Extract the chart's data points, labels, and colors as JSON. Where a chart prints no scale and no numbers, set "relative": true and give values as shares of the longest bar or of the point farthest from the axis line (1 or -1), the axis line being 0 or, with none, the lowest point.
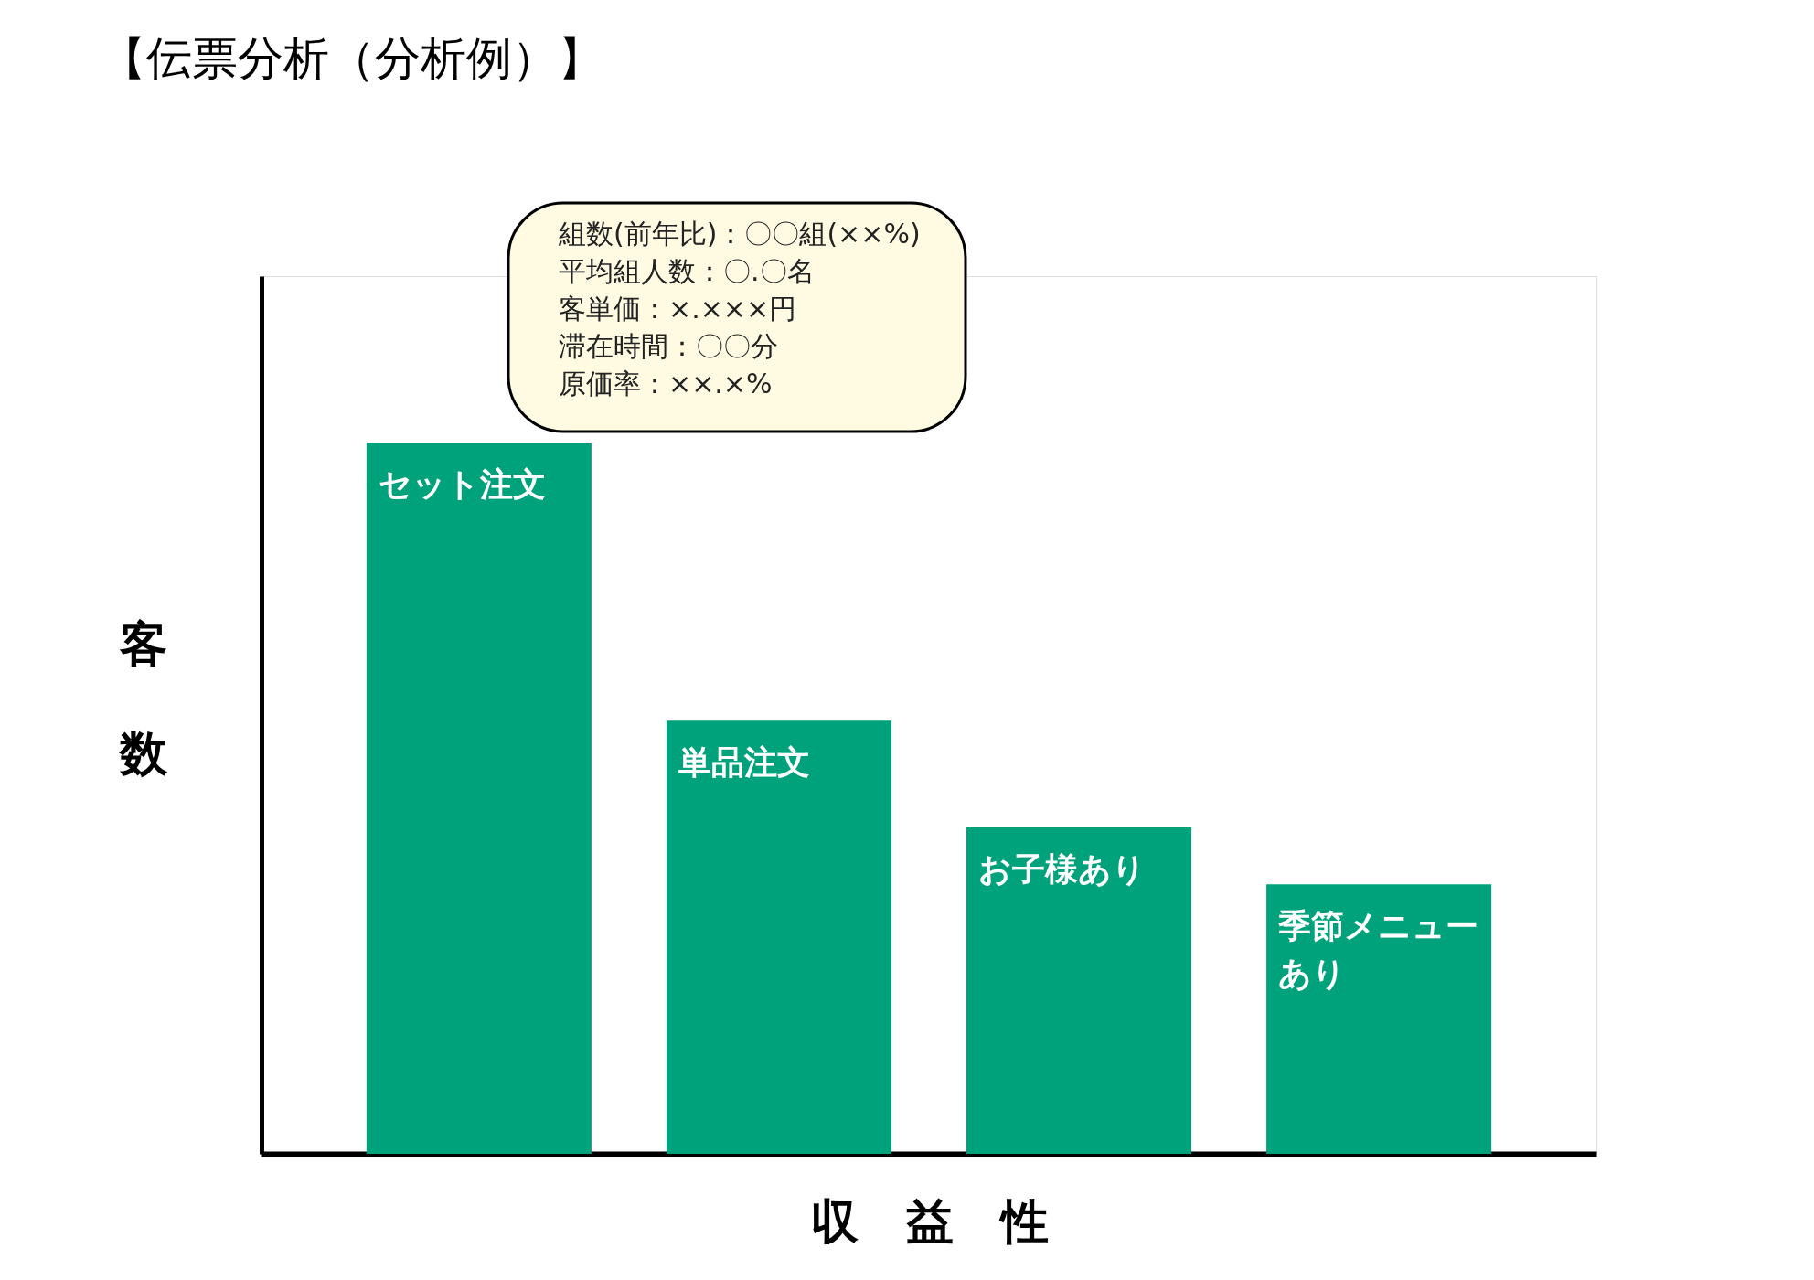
{
  "chart_data": {
    "type": "bar",
    "title": "【伝票分析（分析例）】",
    "xlabel": "収　益　性",
    "ylabel": "客数",
    "categories": [
      "セット注文",
      "単品注文",
      "お子様あり",
      "季節メニューあり"
    ],
    "values": [
      1,
      0.609,
      0.459,
      0.379
    ],
    "color": "#00a27c",
    "relative": true,
    "grid": false,
    "tick_labels": false,
    "annotations": [
      "組数(前年比)：〇〇組(××%)",
      "平均組人数：〇.〇名",
      "客単価：×.×××円",
      "滞在時間：〇〇分",
      "原価率：××.×%"
    ]
  }
}
